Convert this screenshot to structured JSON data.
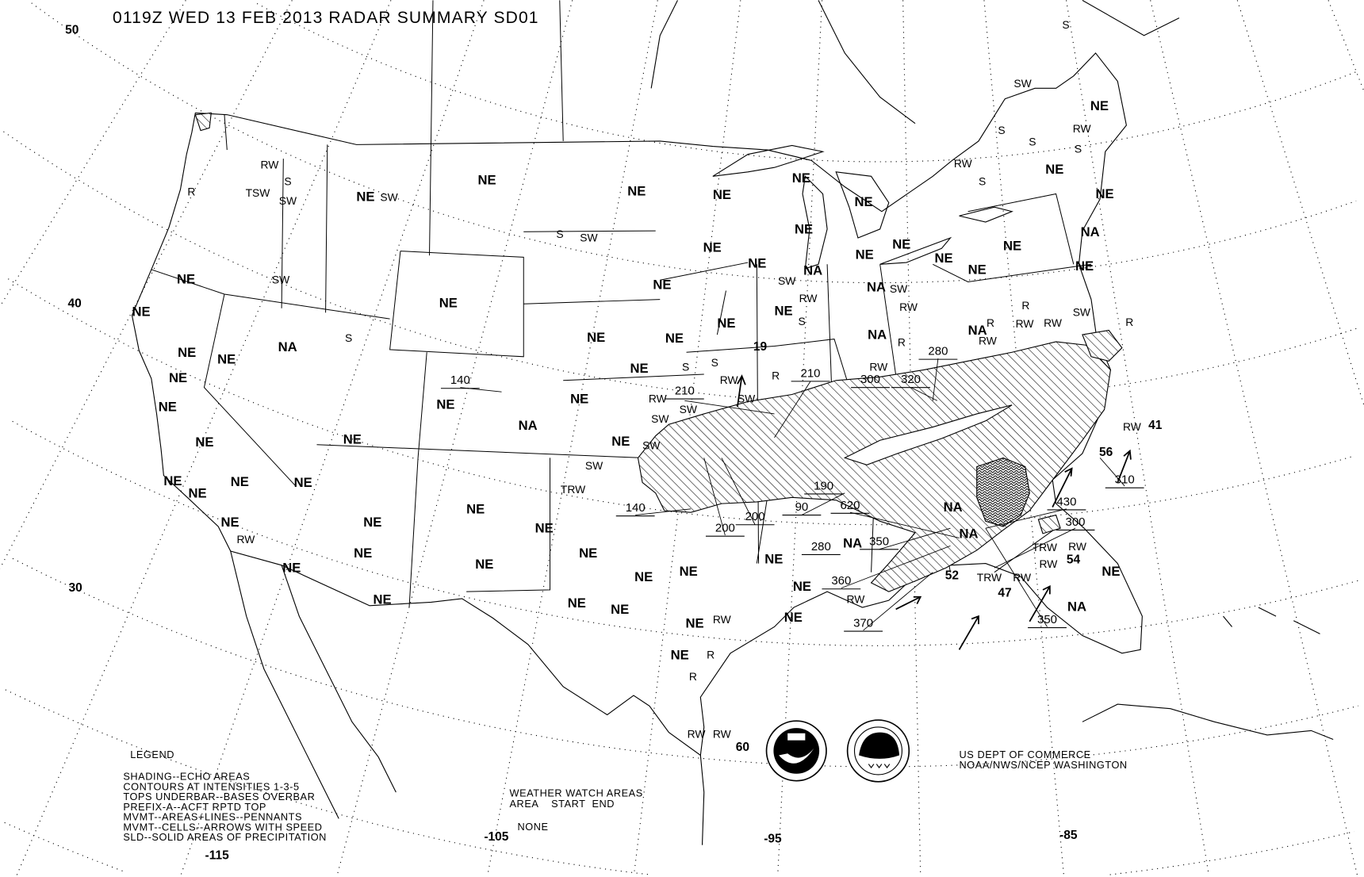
{
  "header": {
    "title": "0119Z WED 13 FEB 2013 RADAR SUMMARY SD01"
  },
  "axes": {
    "latitudes": [
      "50",
      "40",
      "30"
    ],
    "longitudes": [
      "-115",
      "-105",
      "-95",
      "-85"
    ]
  },
  "region_labels": [
    "NE",
    "NE",
    "NE",
    "NE",
    "NE",
    "NE",
    "NE",
    "NE",
    "NE",
    "NE",
    "NE",
    "NE",
    "NE",
    "NE",
    "NE",
    "NE",
    "NE",
    "NE",
    "NE",
    "NE",
    "NE",
    "NE",
    "NE",
    "NE",
    "NE",
    "NE",
    "NE",
    "NE",
    "NE",
    "NE",
    "NE",
    "NE",
    "NE",
    "NE",
    "NE",
    "NE",
    "NE",
    "NE",
    "NE",
    "NE",
    "NE",
    "NE",
    "NE",
    "NE",
    "NE",
    "NE",
    "NE",
    "NE",
    "NE",
    "NE",
    "NE",
    "NE",
    "NE",
    "NE",
    "NE",
    "NE",
    "NE",
    "NE",
    "NE",
    "NA",
    "NA",
    "NA",
    "NA",
    "NA",
    "NA",
    "NA",
    "NA",
    "NA",
    "NA",
    "NA"
  ],
  "weather_labels": [
    "RW",
    "S",
    "R",
    "TSW",
    "SW",
    "SW",
    "S",
    "SW",
    "SW",
    "S",
    "RW",
    "R",
    "R",
    "RW",
    "RW",
    "RW",
    "TRW",
    "SW",
    "SW",
    "RW",
    "SW",
    "SW",
    "RW",
    "S",
    "S",
    "R",
    "SW",
    "RW",
    "S",
    "SW",
    "RW",
    "R",
    "RW",
    "R",
    "R",
    "RW",
    "RW",
    "RW",
    "SW",
    "R",
    "RW",
    "S",
    "SW",
    "S",
    "S",
    "RW",
    "S",
    "RW",
    "S",
    "TRW",
    "RW",
    "RW",
    "TRW",
    "RW",
    "RW",
    "SW"
  ],
  "cell_numbers": [
    "19",
    "41",
    "56",
    "54",
    "52",
    "47",
    "60"
  ],
  "echo_tops": [
    "140",
    "210",
    "210",
    "280",
    "300",
    "320",
    "140",
    "200",
    "200",
    "190",
    "90",
    "620",
    "280",
    "350",
    "360",
    "370",
    "430",
    "300",
    "310",
    "350"
  ],
  "legend": {
    "heading": "LEGEND",
    "lines": [
      "SHADING--ECHO AREAS",
      "CONTOURS AT INTENSITIES 1-3-5",
      "TOPS UNDERBAR--BASES OVERBAR",
      "PREFIX-A--ACFT RPTD TOP",
      "MVMT--AREAS+LINES--PENNANTS",
      "MVMT--CELLS--ARROWS WITH SPEED",
      "SLD--SOLID AREAS OF PRECIPITATION"
    ]
  },
  "watch": {
    "heading": "WEATHER WATCH AREAS",
    "columns": "AREA    START  END",
    "value": "NONE"
  },
  "credit": {
    "line1": "US DEPT OF COMMERCE",
    "line2": "NOAA/NWS/NCEP WASHINGTON"
  },
  "logos": {
    "noaa": "NOAA - NATIONAL OCEANIC AND ATMOSPHERIC ADMINISTRATION - U.S. DEPARTMENT OF COMMERCE",
    "nws": "NATIONAL WEATHER SERVICE"
  },
  "colors": {
    "ink": "#000000",
    "background": "#ffffff"
  }
}
